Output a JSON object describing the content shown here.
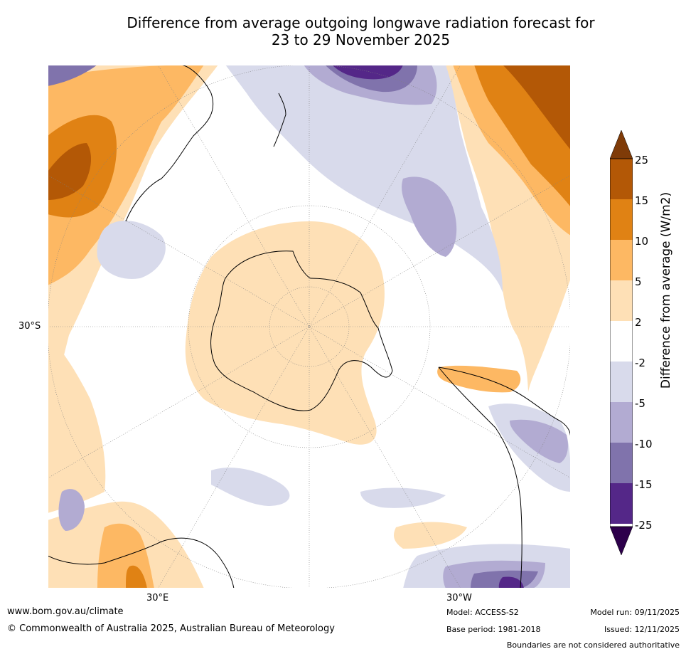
{
  "title_line1": "Difference from average outgoing longwave radiation forecast for",
  "title_line2": "23 to 29 November 2025",
  "labels": {
    "lat_30s": "30°S",
    "lon_30e": "30°E",
    "lon_30w": "30°W"
  },
  "colorbar": {
    "label": "Difference from average (W/m2)",
    "ticks": [
      "25",
      "15",
      "10",
      "5",
      "2",
      "-2",
      "-5",
      "-10",
      "-15",
      "-25"
    ],
    "colors": {
      "over": "#7f3b08",
      "c15_25": "#b35806",
      "c10_15": "#e08214",
      "c5_10": "#fdb863",
      "c2_5": "#fee0b6",
      "neutral": "#ffffff",
      "cm2_m5": "#d8daeb",
      "cm5_m10": "#b2abd2",
      "cm10_m15": "#8073ac",
      "cm15_m25": "#542788",
      "under": "#2d004b"
    }
  },
  "footer": {
    "website": "www.bom.gov.au/climate",
    "copyright": "© Commonwealth of Australia 2025, Australian Bureau of Meteorology",
    "model": "Model: ACCESS-S2",
    "base_period": "Base period: 1981-2018",
    "model_run": "Model run: 09/11/2025",
    "issued": "Issued: 12/11/2025",
    "disclaimer": "Boundaries are not considered authoritative"
  }
}
